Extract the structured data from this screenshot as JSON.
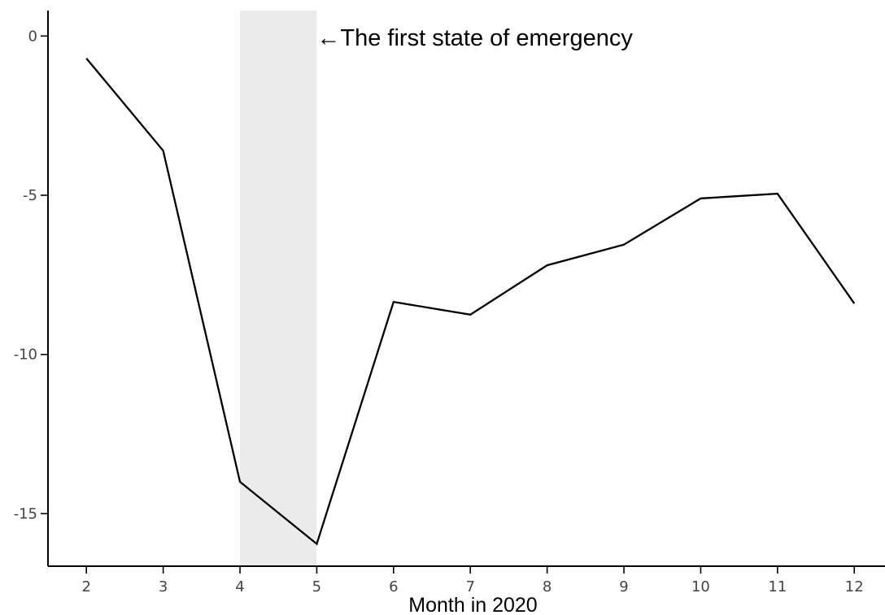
{
  "chart_data": {
    "type": "line",
    "title": "",
    "xlabel": "Month in 2020",
    "ylabel": "",
    "x": [
      2,
      3,
      4,
      5,
      6,
      7,
      8,
      9,
      10,
      11,
      12
    ],
    "x_tick_labels": [
      "2",
      "3",
      "4",
      "5",
      "6",
      "7",
      "8",
      "9",
      "10",
      "11",
      "12"
    ],
    "y_ticks": [
      0,
      -5,
      -10,
      -15
    ],
    "y_tick_labels": [
      "0",
      "-5",
      "-10",
      "-15"
    ],
    "series": [
      {
        "values": [
          -0.7,
          -3.6,
          -14.0,
          -15.95,
          -8.35,
          -8.75,
          -7.2,
          -6.55,
          -5.1,
          -4.95,
          -8.4
        ]
      }
    ],
    "xlim": [
      1.5,
      12.4
    ],
    "ylim": [
      -16.65,
      0.8
    ],
    "highlight_region": {
      "x_start": 4,
      "x_end": 5,
      "label": "←The first state of emergency"
    },
    "grid": false,
    "legend": "none",
    "colors": {
      "line": "#000000",
      "highlight": "#ebebeb",
      "axis": "#000000",
      "tick_text": "#444444"
    }
  }
}
